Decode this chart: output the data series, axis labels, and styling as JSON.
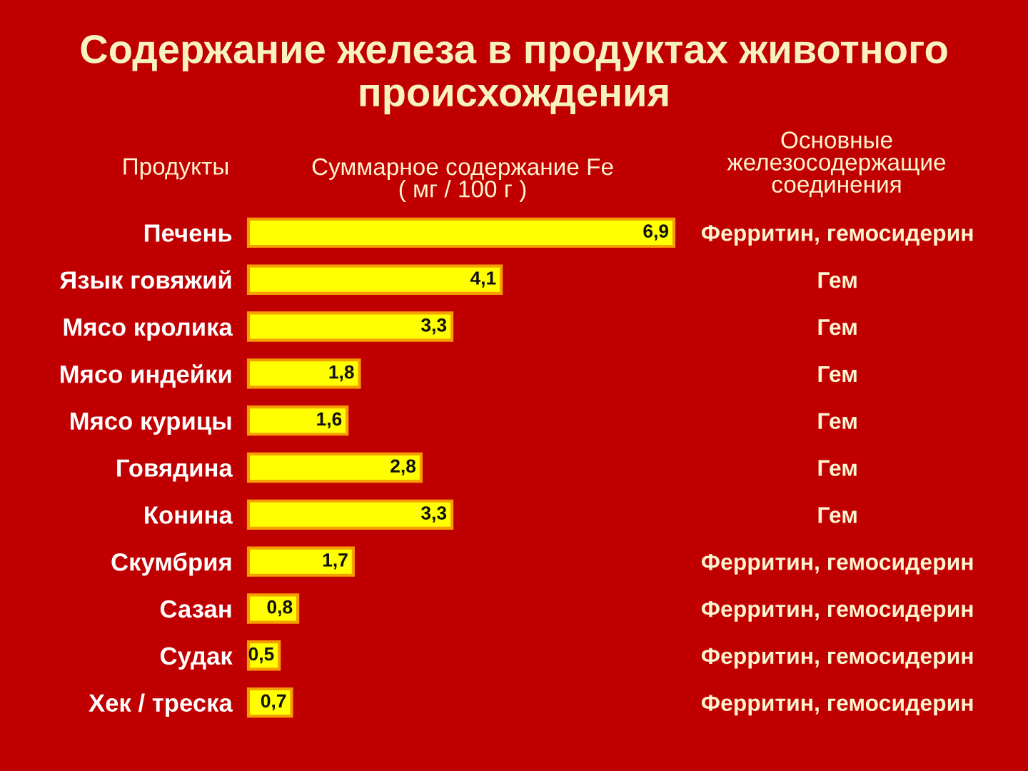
{
  "chart_data": {
    "type": "bar",
    "orientation": "horizontal",
    "title": "Содержание железа в продуктах животного\nпроисхождения",
    "xlabel": "Суммарное содержание Fe\n( мг / 100 г )",
    "ylabel": "Продукты",
    "y2label": "Основные\nжелезосодержащие\nсоединения",
    "categories": [
      "Печень",
      "Язык говяжий",
      "Мясо кролика",
      "Мясо индейки",
      "Мясо курицы",
      "Говядина",
      "Конина",
      "Скумбрия",
      "Сазан",
      "Судак",
      "Хек / треска"
    ],
    "y2_categories": [
      "Ферритин, гемосидерин",
      "Гем",
      "Гем",
      "Гем",
      "Гем",
      "Гем",
      "Гем",
      "Ферритин, гемосидерин",
      "Ферритин, гемосидерин",
      "Ферритин, гемосидерин",
      "Ферритин, гемосидерин"
    ],
    "values": [
      6.9,
      4.1,
      3.3,
      1.8,
      1.6,
      2.8,
      3.3,
      1.7,
      0.8,
      0.5,
      0.7
    ],
    "value_labels": [
      "6,9",
      "4,1",
      "3,3",
      "1,8",
      "1,6",
      "2,8",
      "3,3",
      "1,7",
      "0,8",
      "0,5",
      "0,7"
    ],
    "color": "#ffff00",
    "tick_labels": "y"
  }
}
